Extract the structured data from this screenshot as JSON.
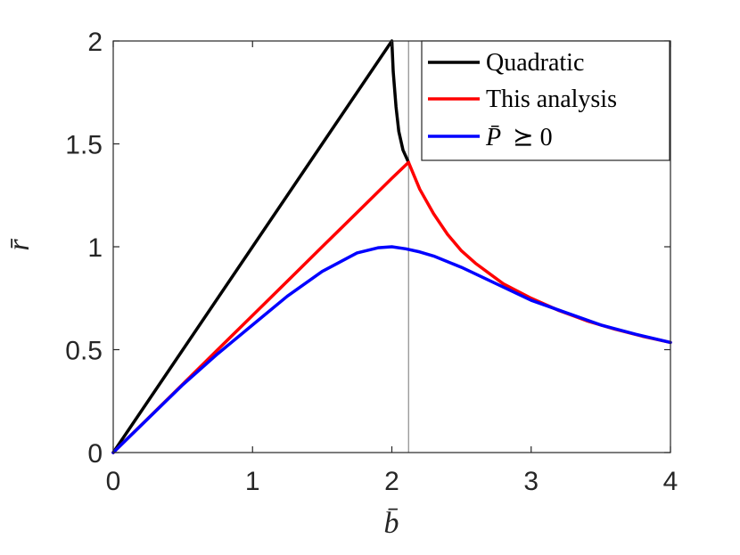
{
  "chart_data": {
    "type": "line",
    "xlabel": "b̄",
    "ylabel": "r̄",
    "xlim": [
      0,
      4
    ],
    "ylim": [
      0,
      2
    ],
    "xticks": [
      0,
      1,
      2,
      3,
      4
    ],
    "yticks": [
      0,
      0.5,
      1,
      1.5,
      2
    ],
    "xtick_labels": [
      "0",
      "1",
      "2",
      "3",
      "4"
    ],
    "ytick_labels": [
      "0",
      "0.5",
      "1",
      "1.5",
      "2"
    ],
    "grid": false,
    "legend_position": "top-right",
    "vline_x": 2.12,
    "vline_color": "#8c8c8c",
    "series": [
      {
        "name": "Quadratic",
        "color": "#000000",
        "x": [
          0,
          0.5,
          1.0,
          1.5,
          2.0,
          2.01,
          2.03,
          2.05,
          2.08,
          2.12
        ],
        "y": [
          0,
          0.5,
          1.0,
          1.5,
          2.0,
          1.85,
          1.68,
          1.56,
          1.47,
          1.41
        ]
      },
      {
        "name": "This analysis",
        "color": "#ff0000",
        "x": [
          0,
          0.25,
          0.5,
          0.75,
          1.0,
          1.25,
          1.5,
          1.75,
          2.0,
          2.12,
          2.2,
          2.3,
          2.4,
          2.5,
          2.6,
          2.8,
          3.0,
          3.2,
          3.4,
          3.6,
          3.8,
          4.0
        ],
        "y": [
          0,
          0.166,
          0.333,
          0.5,
          0.666,
          0.833,
          1.0,
          1.166,
          1.333,
          1.41,
          1.28,
          1.16,
          1.06,
          0.98,
          0.92,
          0.82,
          0.75,
          0.69,
          0.64,
          0.6,
          0.565,
          0.535
        ]
      },
      {
        "name": "",
        "legend_label_var": "P̄",
        "legend_label_rel": "⪰ 0",
        "color": "#0000ff",
        "x": [
          0,
          0.25,
          0.5,
          0.75,
          1.0,
          1.25,
          1.5,
          1.75,
          1.9,
          2.0,
          2.1,
          2.2,
          2.3,
          2.5,
          2.75,
          3.0,
          3.25,
          3.5,
          3.75,
          4.0
        ],
        "y": [
          0,
          0.165,
          0.33,
          0.48,
          0.62,
          0.76,
          0.88,
          0.97,
          0.995,
          1.0,
          0.99,
          0.975,
          0.955,
          0.9,
          0.82,
          0.74,
          0.68,
          0.62,
          0.575,
          0.535
        ]
      }
    ]
  }
}
